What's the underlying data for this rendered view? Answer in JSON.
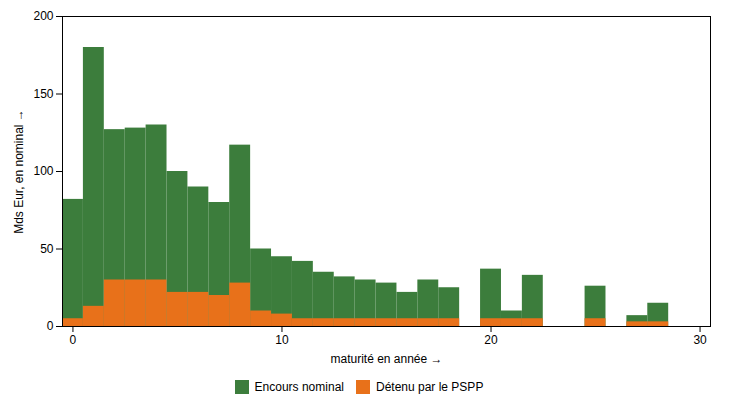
{
  "chart_data": {
    "type": "bar",
    "x": [
      0,
      1,
      2,
      3,
      4,
      5,
      6,
      7,
      8,
      9,
      10,
      11,
      12,
      13,
      14,
      15,
      16,
      17,
      18,
      19,
      20,
      21,
      22,
      23,
      24,
      25,
      26,
      27,
      28,
      29,
      30
    ],
    "series": [
      {
        "name": "Encours nominal",
        "color": "#3c7d3c",
        "values": [
          82,
          180,
          127,
          128,
          130,
          100,
          90,
          80,
          117,
          50,
          45,
          42,
          35,
          32,
          30,
          28,
          22,
          30,
          25,
          0,
          37,
          10,
          33,
          0,
          0,
          26,
          0,
          7,
          15,
          0,
          0
        ]
      },
      {
        "name": "Détenu par le PSPP",
        "color": "#e8711a",
        "values": [
          5,
          13,
          30,
          30,
          30,
          22,
          22,
          20,
          28,
          10,
          8,
          5,
          5,
          5,
          5,
          5,
          5,
          5,
          5,
          0,
          5,
          5,
          5,
          0,
          0,
          5,
          0,
          3,
          3,
          0,
          0
        ]
      }
    ],
    "xlabel": "maturité en année",
    "ylabel": "Mds Eur, en nominal",
    "xlim": [
      -0.5,
      30.5
    ],
    "xticks": [
      0,
      10,
      20,
      30
    ],
    "ylim": [
      0,
      200
    ],
    "yticks": [
      0,
      50,
      100,
      150,
      200
    ],
    "stacked": false,
    "grid": false,
    "legend": "bottom"
  }
}
